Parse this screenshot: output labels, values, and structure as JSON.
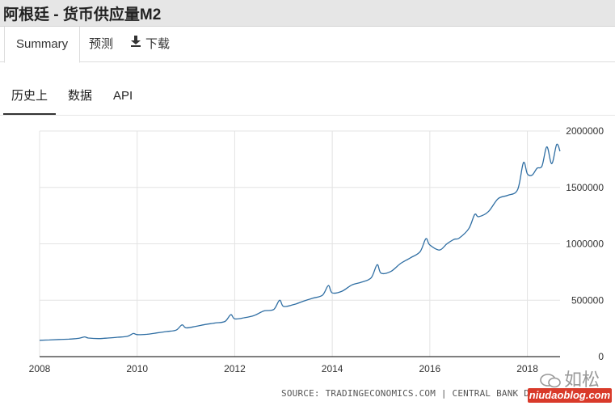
{
  "header": {
    "title": "阿根廷 - 货币供应量M2"
  },
  "tabs": [
    {
      "label": "Summary"
    },
    {
      "label": "预测"
    },
    {
      "label": "下载"
    }
  ],
  "subtabs": [
    {
      "label": "历史上"
    },
    {
      "label": "数据"
    },
    {
      "label": "API"
    }
  ],
  "source": "SOURCE: TRADINGECONOMICS.COM | CENTRAL BANK DE ARGENTINA",
  "watermark": {
    "text": "如松",
    "site": "niudaoblog.com"
  },
  "colors": {
    "line": "#2f6ea3",
    "grid": "#e3e3e3",
    "axis": "#333333"
  },
  "chart_data": {
    "type": "line",
    "title": "",
    "xlabel": "",
    "ylabel": "",
    "xlim": [
      2008,
      2018.7
    ],
    "ylim": [
      0,
      2000000
    ],
    "x_ticks": [
      2008,
      2010,
      2012,
      2014,
      2016,
      2018
    ],
    "y_ticks": [
      0,
      500000,
      1000000,
      1500000,
      2000000
    ],
    "y_tick_labels": [
      "0",
      "500000",
      "1000000",
      "1500000",
      "2000000"
    ],
    "grid": true,
    "series": [
      {
        "name": "",
        "color": "#2f6ea3",
        "x": [
          2008.0,
          2008.2,
          2008.4,
          2008.6,
          2008.8,
          2008.92,
          2009.0,
          2009.2,
          2009.4,
          2009.6,
          2009.8,
          2009.92,
          2010.0,
          2010.2,
          2010.4,
          2010.6,
          2010.8,
          2010.92,
          2011.0,
          2011.2,
          2011.4,
          2011.6,
          2011.8,
          2011.92,
          2012.0,
          2012.2,
          2012.4,
          2012.6,
          2012.8,
          2012.92,
          2013.0,
          2013.2,
          2013.4,
          2013.6,
          2013.8,
          2013.92,
          2014.0,
          2014.2,
          2014.4,
          2014.6,
          2014.8,
          2014.92,
          2015.0,
          2015.2,
          2015.4,
          2015.6,
          2015.8,
          2015.92,
          2016.0,
          2016.2,
          2016.35,
          2016.5,
          2016.6,
          2016.8,
          2016.92,
          2017.0,
          2017.2,
          2017.4,
          2017.6,
          2017.8,
          2017.92,
          2018.0,
          2018.1,
          2018.2,
          2018.3,
          2018.4,
          2018.5,
          2018.6,
          2018.67
        ],
        "y": [
          145000,
          148000,
          152000,
          155000,
          162000,
          175000,
          165000,
          160000,
          165000,
          172000,
          180000,
          205000,
          195000,
          198000,
          210000,
          222000,
          235000,
          282000,
          255000,
          268000,
          285000,
          298000,
          312000,
          372000,
          335000,
          345000,
          365000,
          405000,
          418000,
          500000,
          445000,
          460000,
          490000,
          518000,
          545000,
          630000,
          565000,
          580000,
          635000,
          660000,
          700000,
          815000,
          740000,
          755000,
          825000,
          875000,
          930000,
          1045000,
          990000,
          945000,
          1000000,
          1040000,
          1050000,
          1135000,
          1260000,
          1240000,
          1285000,
          1400000,
          1430000,
          1480000,
          1720000,
          1620000,
          1610000,
          1670000,
          1690000,
          1860000,
          1710000,
          1880000,
          1820000
        ]
      }
    ]
  }
}
